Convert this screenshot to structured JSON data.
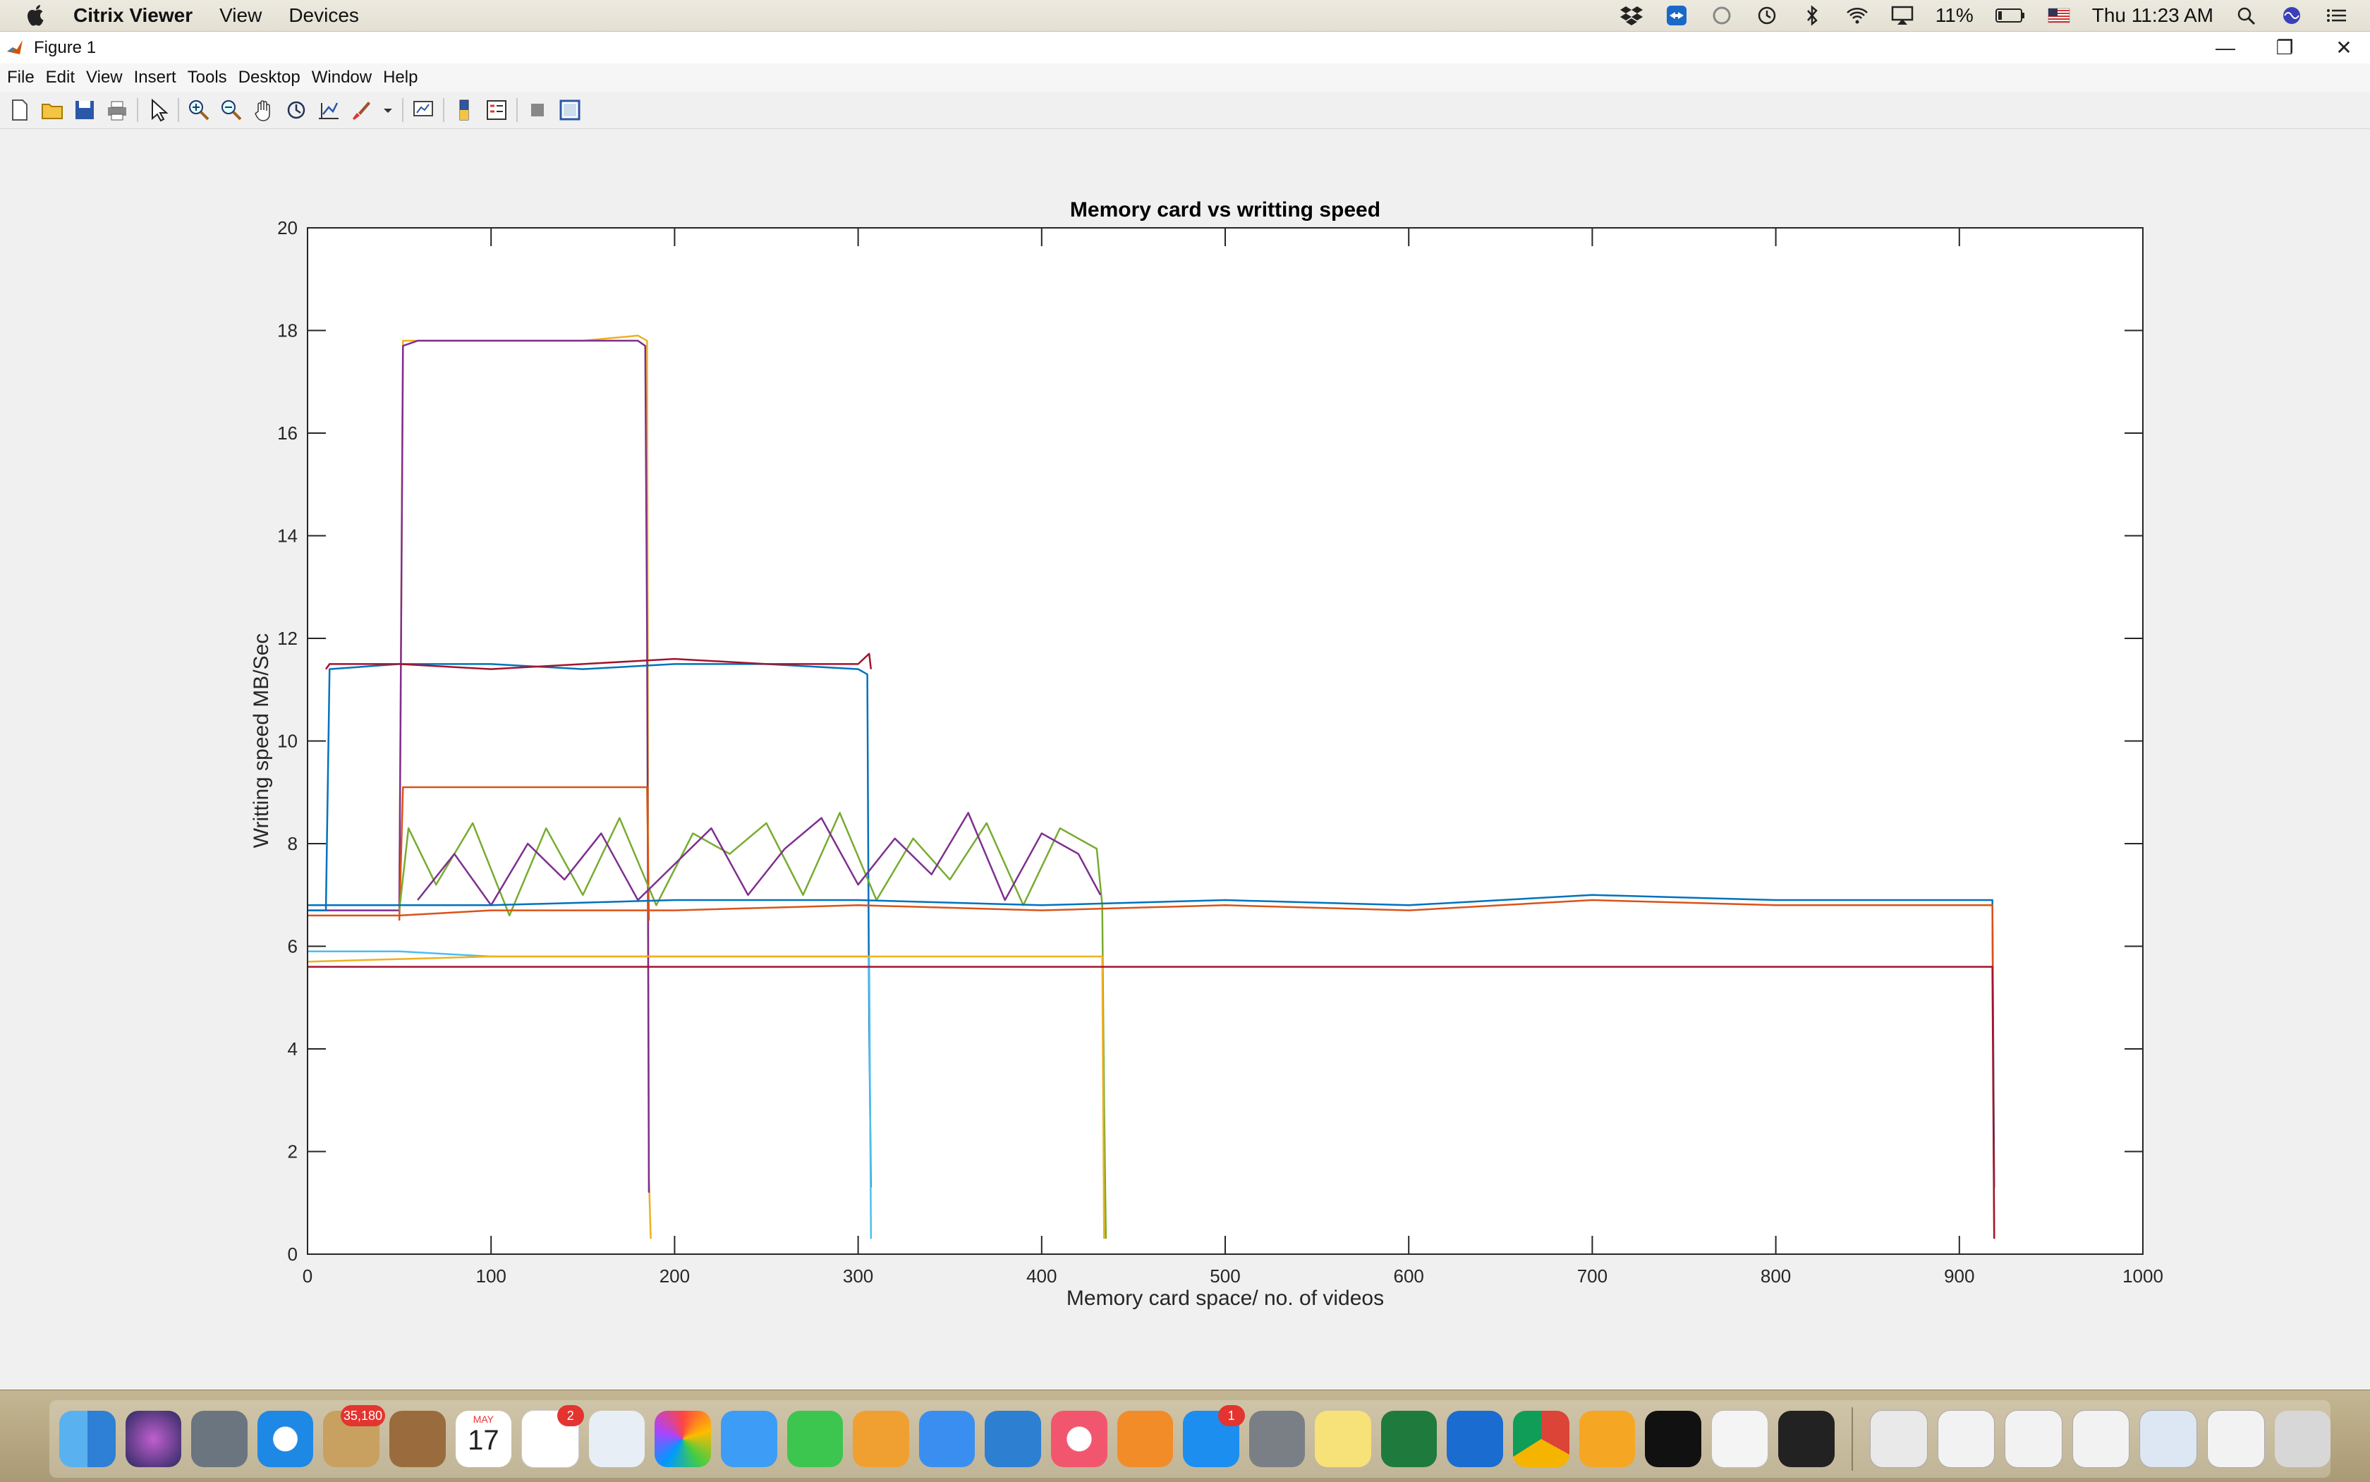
{
  "menubar": {
    "app_name": "Citrix Viewer",
    "items": [
      "View",
      "Devices"
    ],
    "status": {
      "battery": "11%",
      "clock": "Thu 11:23 AM"
    }
  },
  "figure_window": {
    "title": "Figure 1",
    "menu": [
      "File",
      "Edit",
      "View",
      "Insert",
      "Tools",
      "Desktop",
      "Window",
      "Help"
    ]
  },
  "dock": {
    "badges": {
      "mail": "35,180",
      "reminders": "2",
      "appstore": "1"
    },
    "calendar_month": "MAY",
    "calendar_day": "17"
  },
  "colors": {
    "blue": "#0072bd",
    "orange": "#d95319",
    "yellow": "#edb120",
    "purple": "#7e2f8e",
    "green": "#77ac30",
    "cyan": "#4dbeee",
    "darkred": "#a2142f"
  },
  "chart_data": {
    "type": "line",
    "title": "Memory card vs writting speed",
    "xlabel": "Memory card space/ no. of videos",
    "ylabel": "Writting speed MB/Sec",
    "xlim": [
      0,
      1000
    ],
    "ylim": [
      0,
      20
    ],
    "xticks": [
      "0",
      "100",
      "200",
      "300",
      "400",
      "500",
      "600",
      "700",
      "800",
      "900",
      "1000"
    ],
    "yticks": [
      "0",
      "2",
      "4",
      "6",
      "8",
      "10",
      "12",
      "14",
      "16",
      "18",
      "20"
    ],
    "grid": false,
    "series": [
      {
        "color": "#edb120",
        "x": [
          0,
          50,
          52,
          60,
          100,
          150,
          180,
          185,
          186,
          187
        ],
        "y": [
          6.8,
          6.8,
          17.8,
          17.8,
          17.8,
          17.8,
          17.9,
          17.8,
          1.5,
          0.3
        ]
      },
      {
        "color": "#7e2f8e",
        "x": [
          0,
          50,
          52,
          60,
          100,
          150,
          180,
          184,
          185,
          186
        ],
        "y": [
          6.7,
          6.7,
          17.7,
          17.8,
          17.8,
          17.8,
          17.8,
          17.7,
          12.0,
          1.2
        ]
      },
      {
        "color": "#0072bd",
        "x": [
          0,
          10,
          12,
          50,
          100,
          150,
          200,
          250,
          300,
          305,
          306,
          307
        ],
        "y": [
          6.7,
          6.7,
          11.4,
          11.5,
          11.5,
          11.4,
          11.5,
          11.5,
          11.4,
          11.3,
          4.5,
          1.3
        ]
      },
      {
        "color": "#a2142f",
        "x": [
          10,
          12,
          50,
          100,
          150,
          200,
          250,
          300,
          306,
          307
        ],
        "y": [
          11.4,
          11.5,
          11.5,
          11.4,
          11.5,
          11.6,
          11.5,
          11.5,
          11.7,
          11.4
        ]
      },
      {
        "color": "#d95319",
        "x": [
          50,
          52,
          100,
          150,
          185,
          186
        ],
        "y": [
          6.5,
          9.1,
          9.1,
          9.1,
          9.1,
          6.5
        ]
      },
      {
        "color": "#77ac30",
        "x": [
          50,
          55,
          70,
          90,
          110,
          130,
          150,
          170,
          190,
          210,
          230,
          250,
          270,
          290,
          310,
          330,
          350,
          370,
          390,
          410,
          430,
          433,
          434,
          435
        ],
        "y": [
          6.7,
          8.3,
          7.2,
          8.4,
          6.6,
          8.3,
          7.0,
          8.5,
          6.8,
          8.2,
          7.8,
          8.4,
          7.0,
          8.6,
          6.9,
          8.1,
          7.3,
          8.4,
          6.8,
          8.3,
          7.9,
          6.8,
          3.0,
          0.3
        ]
      },
      {
        "color": "#7e2f8e",
        "x": [
          60,
          80,
          100,
          120,
          140,
          160,
          180,
          200,
          220,
          240,
          260,
          280,
          300,
          320,
          340,
          360,
          380,
          400,
          420,
          432
        ],
        "y": [
          6.9,
          7.8,
          6.8,
          8.0,
          7.3,
          8.2,
          6.9,
          7.6,
          8.3,
          7.0,
          7.9,
          8.5,
          7.2,
          8.1,
          7.4,
          8.6,
          6.9,
          8.2,
          7.8,
          7.0
        ]
      },
      {
        "color": "#0072bd",
        "x": [
          0,
          50,
          100,
          200,
          300,
          400,
          500,
          600,
          700,
          800,
          900,
          915,
          918,
          919
        ],
        "y": [
          6.8,
          6.8,
          6.8,
          6.9,
          6.9,
          6.8,
          6.9,
          6.8,
          7.0,
          6.9,
          6.9,
          6.9,
          6.9,
          1.3
        ]
      },
      {
        "color": "#d95319",
        "x": [
          0,
          50,
          100,
          200,
          300,
          400,
          500,
          600,
          700,
          800,
          900,
          915,
          918,
          919
        ],
        "y": [
          6.6,
          6.6,
          6.7,
          6.7,
          6.8,
          6.7,
          6.8,
          6.7,
          6.9,
          6.8,
          6.8,
          6.8,
          6.8,
          0.3
        ]
      },
      {
        "color": "#4dbeee",
        "x": [
          0,
          50,
          100,
          200,
          300,
          305,
          306,
          307
        ],
        "y": [
          5.9,
          5.9,
          5.8,
          5.8,
          5.8,
          5.8,
          5.8,
          0.3
        ]
      },
      {
        "color": "#edb120",
        "x": [
          0,
          100,
          200,
          300,
          400,
          430,
          433,
          434
        ],
        "y": [
          5.7,
          5.8,
          5.8,
          5.8,
          5.8,
          5.8,
          5.8,
          0.3
        ]
      },
      {
        "color": "#a2142f",
        "x": [
          0,
          100,
          200,
          300,
          400,
          500,
          600,
          700,
          800,
          900,
          915,
          918,
          919
        ],
        "y": [
          5.6,
          5.6,
          5.6,
          5.6,
          5.6,
          5.6,
          5.6,
          5.6,
          5.6,
          5.6,
          5.6,
          5.6,
          0.3
        ]
      }
    ]
  }
}
